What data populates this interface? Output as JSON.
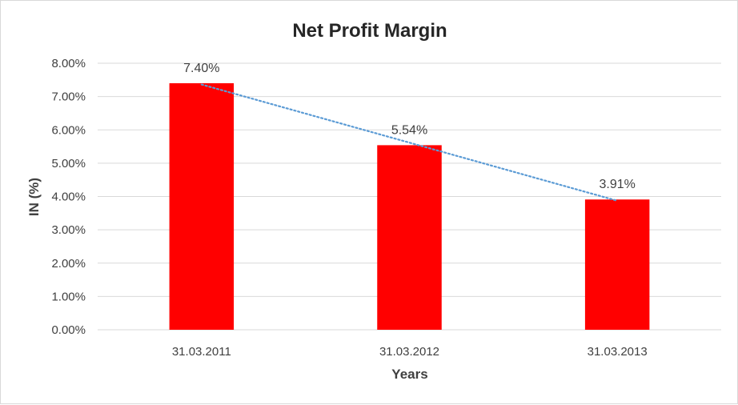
{
  "chart_data": {
    "type": "bar",
    "title": "Net Profit Margin",
    "xlabel": "Years",
    "ylabel": "IN (%)",
    "categories": [
      "31.03.2011",
      "31.03.2012",
      "31.03.2013"
    ],
    "values": [
      7.4,
      5.54,
      3.91
    ],
    "data_labels": [
      "7.40%",
      "5.54%",
      "3.91%"
    ],
    "ylim": [
      0,
      8
    ],
    "yticks": [
      0,
      1,
      2,
      3,
      4,
      5,
      6,
      7,
      8
    ],
    "ytick_labels": [
      "0.00%",
      "1.00%",
      "2.00%",
      "3.00%",
      "4.00%",
      "5.00%",
      "6.00%",
      "7.00%",
      "8.00%"
    ],
    "grid": true,
    "legend": "none",
    "trendline": {
      "type": "linear",
      "style": "dotted"
    },
    "colors": {
      "bar": "#ff0000",
      "trendline": "#5b9bd5",
      "grid": "#d9d9d9",
      "text": "#404040"
    }
  }
}
